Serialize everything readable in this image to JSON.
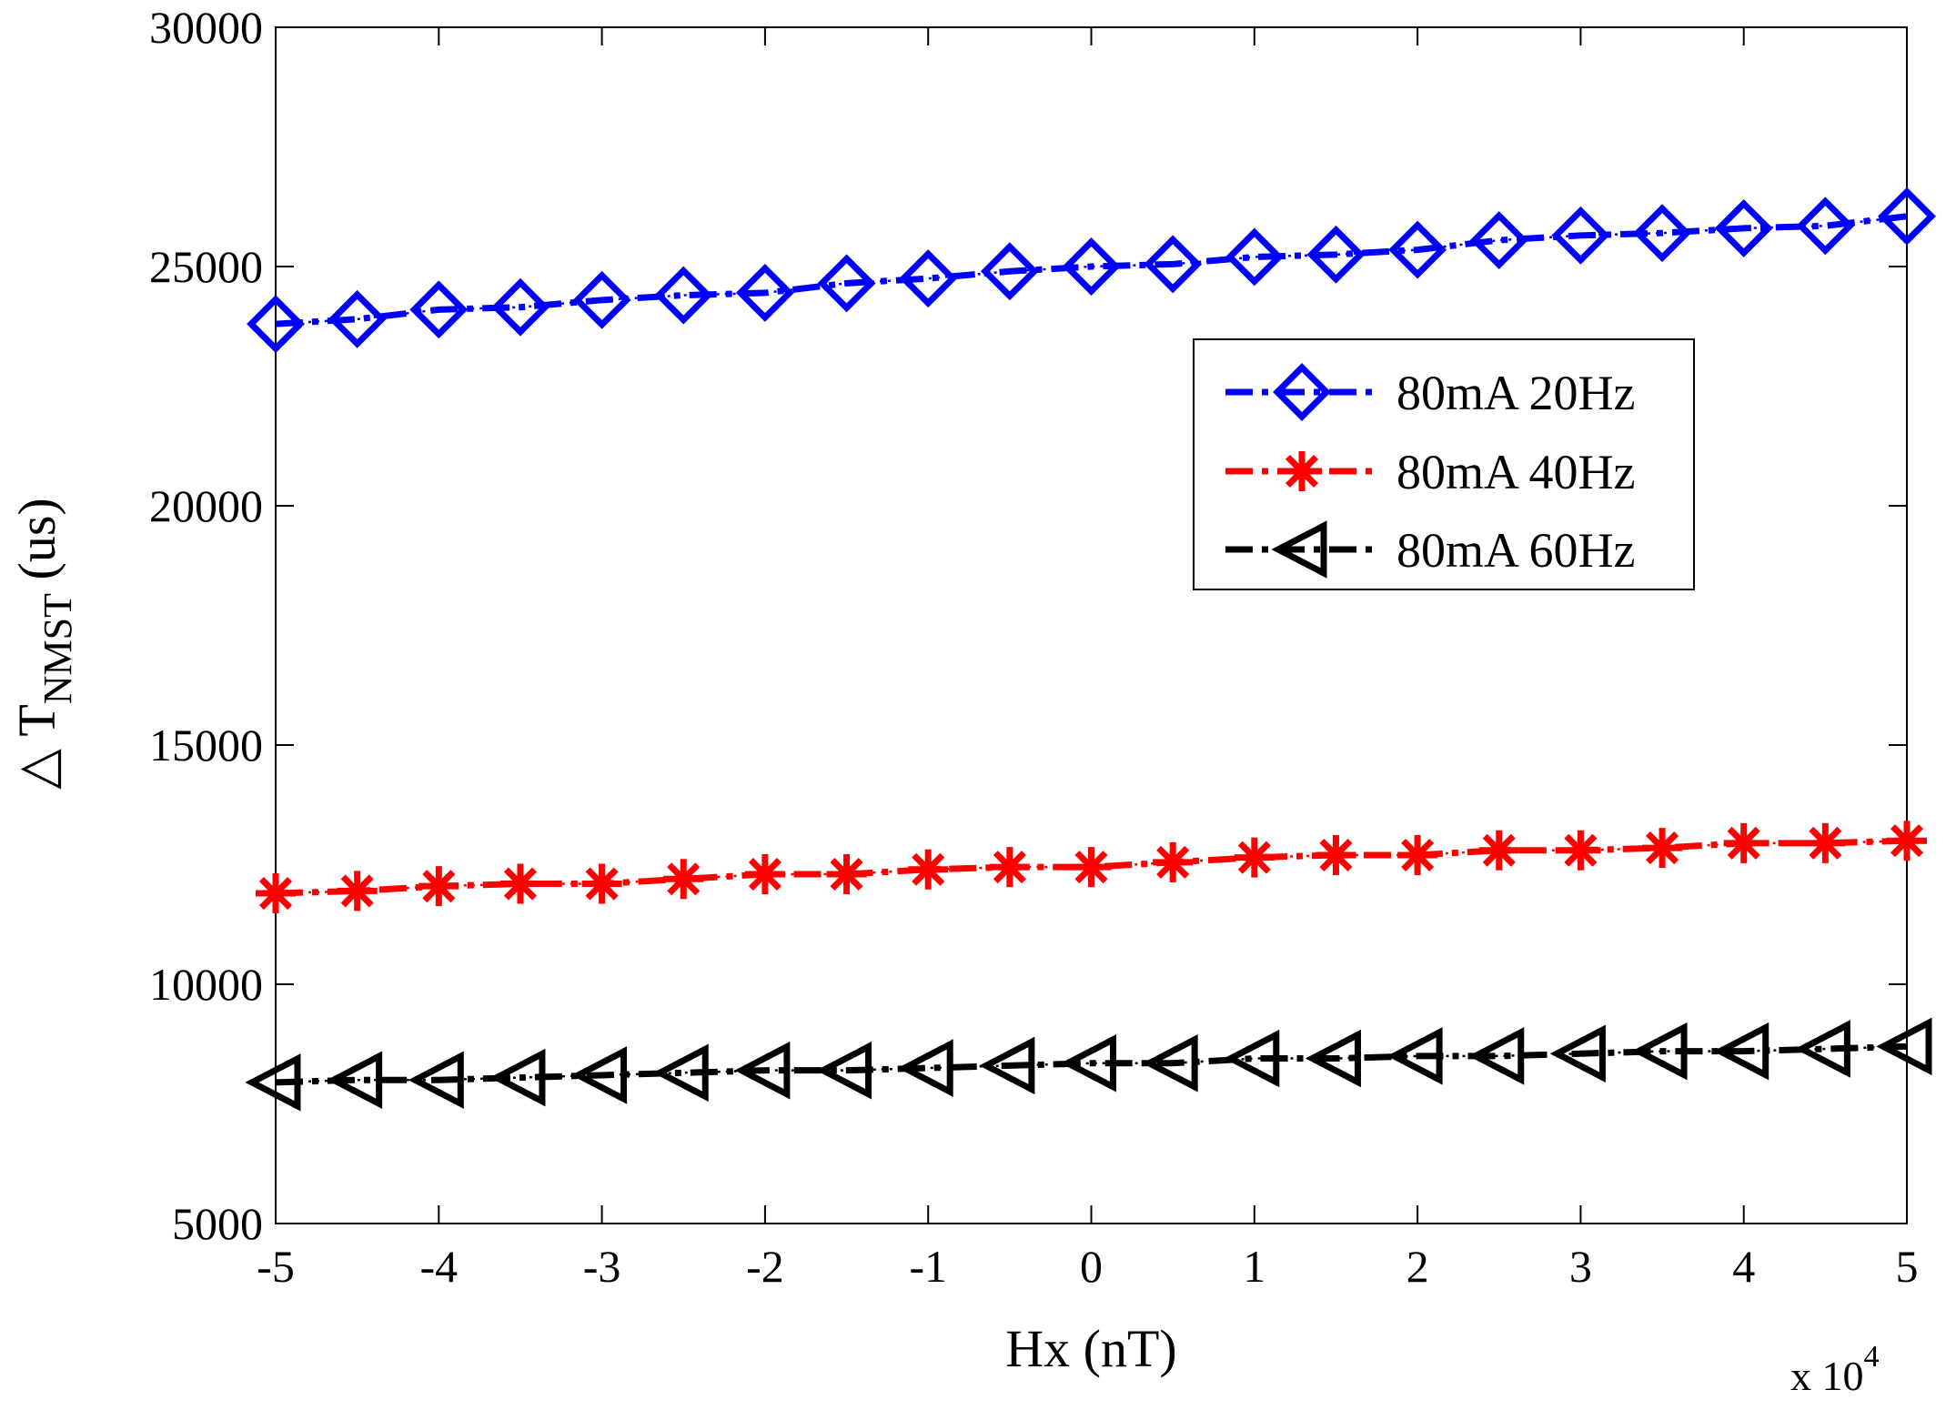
{
  "chart_data": {
    "type": "line",
    "title": "",
    "xlabel": "Hx (nT)",
    "ylabel_prefix": "△ T",
    "ylabel_sub": "NMST",
    "ylabel_suffix": " (us)",
    "x_exponent_base": "x 10",
    "x_exponent_power": "4",
    "x_scale": 10000,
    "xlim": [
      -5,
      5
    ],
    "ylim": [
      5000,
      30000
    ],
    "xticks": [
      -5,
      -4,
      -3,
      -2,
      -1,
      0,
      1,
      2,
      3,
      4,
      5
    ],
    "xtick_labels": [
      "-5",
      "-4",
      "-3",
      "-2",
      "-1",
      "0",
      "1",
      "2",
      "3",
      "4",
      "5"
    ],
    "yticks": [
      5000,
      10000,
      15000,
      20000,
      25000,
      30000
    ],
    "ytick_labels": [
      "5000",
      "10000",
      "15000",
      "20000",
      "25000",
      "30000"
    ],
    "grid": false,
    "legend_position": "upper-right",
    "x": [
      -5,
      -4.5,
      -4,
      -3.5,
      -3,
      -2.5,
      -2,
      -1.5,
      -1,
      -0.5,
      0,
      0.5,
      1,
      1.5,
      2,
      2.5,
      3,
      3.5,
      4,
      4.5,
      5
    ],
    "series": [
      {
        "name": "80mA 20Hz",
        "color": "#0000ff",
        "marker": "diamond",
        "values": [
          23800,
          23900,
          24100,
          24150,
          24300,
          24400,
          24450,
          24650,
          24750,
          24900,
          25000,
          25050,
          25200,
          25250,
          25350,
          25550,
          25650,
          25700,
          25800,
          25850,
          26050
        ]
      },
      {
        "name": "80mA 40Hz",
        "color": "#ff0000",
        "marker": "asterisk",
        "values": [
          11900,
          11950,
          12050,
          12100,
          12100,
          12200,
          12300,
          12300,
          12400,
          12450,
          12450,
          12550,
          12650,
          12700,
          12700,
          12800,
          12800,
          12850,
          12950,
          12950,
          13000
        ]
      },
      {
        "name": "80mA 60Hz",
        "color": "#000000",
        "marker": "triangle-left",
        "values": [
          7950,
          8000,
          8000,
          8050,
          8100,
          8150,
          8200,
          8200,
          8250,
          8300,
          8350,
          8350,
          8450,
          8450,
          8500,
          8500,
          8550,
          8600,
          8600,
          8650,
          8700
        ]
      }
    ]
  }
}
